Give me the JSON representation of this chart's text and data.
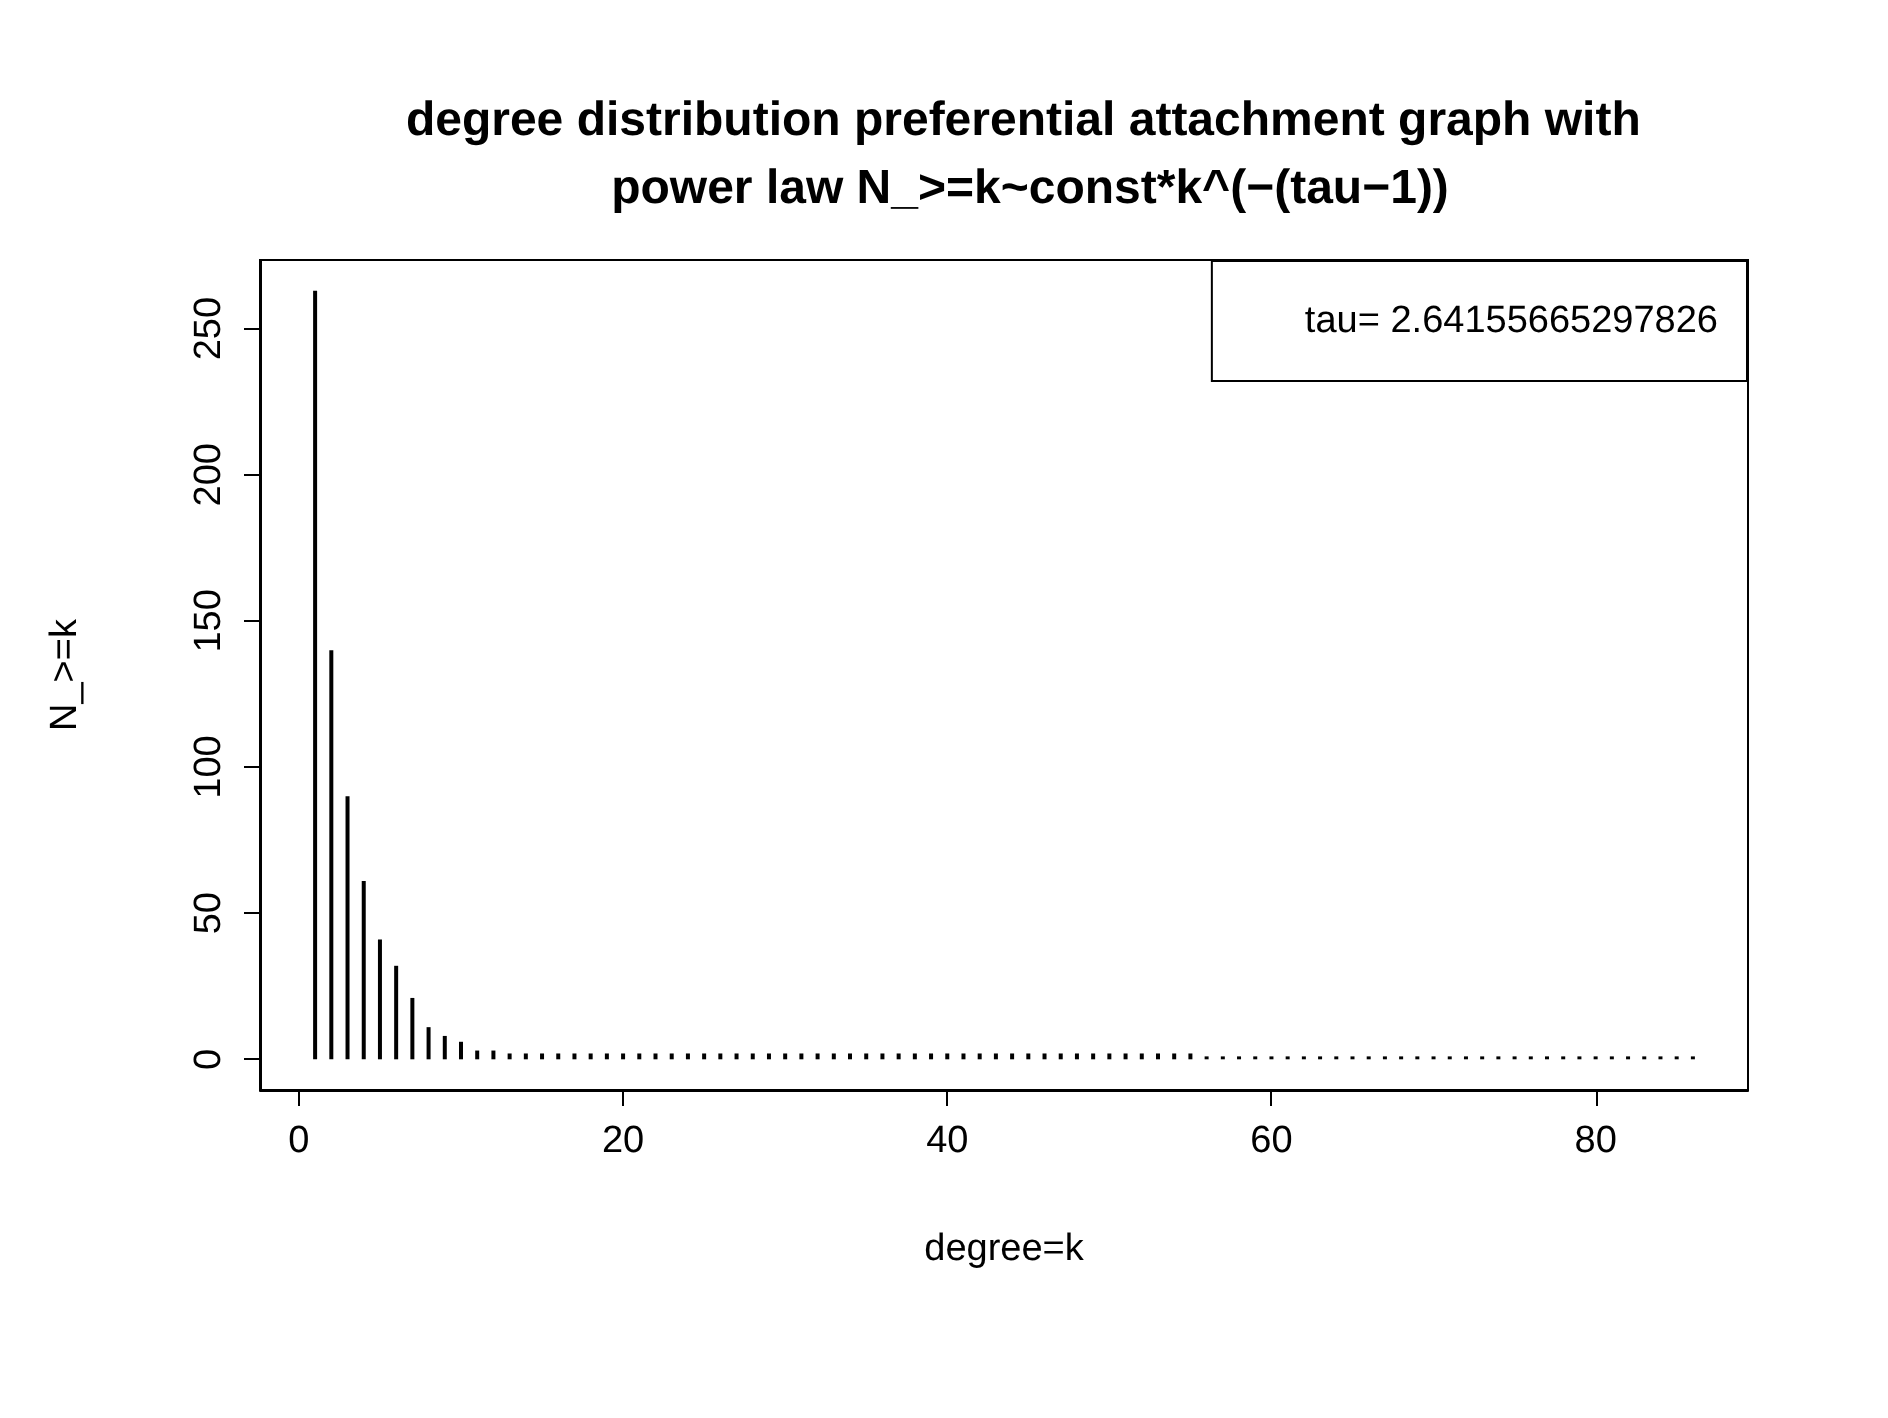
{
  "chart_data": {
    "type": "bar",
    "title": "degree distribution preferential attachment graph with power law N_>=k~const*k^(−(tau−1))",
    "xlabel": "degree=k",
    "ylabel": "N_>=k",
    "x": [
      1,
      2,
      3,
      4,
      5,
      6,
      7,
      8,
      9,
      10,
      11,
      12,
      13,
      14,
      15,
      16,
      17,
      18,
      19,
      20,
      21,
      22,
      23,
      24,
      25,
      26,
      27,
      28,
      29,
      30,
      31,
      32,
      33,
      34,
      35,
      36,
      37,
      38,
      39,
      40,
      41,
      42,
      43,
      44,
      45,
      46,
      47,
      48,
      49,
      50,
      51,
      52,
      53,
      54,
      55,
      56,
      57,
      58,
      59,
      60,
      61,
      62,
      63,
      64,
      65,
      66,
      67,
      68,
      69,
      70,
      71,
      72,
      73,
      74,
      75,
      76,
      77,
      78,
      79,
      80,
      81,
      82,
      83,
      84,
      85,
      86
    ],
    "values": [
      263,
      140,
      90,
      61,
      41,
      32,
      21,
      11,
      8,
      6,
      3,
      3,
      2,
      2,
      2,
      2,
      2,
      2,
      2,
      2,
      2,
      2,
      2,
      2,
      2,
      2,
      2,
      2,
      2,
      2,
      2,
      2,
      2,
      2,
      2,
      2,
      2,
      2,
      2,
      2,
      2,
      2,
      2,
      2,
      2,
      2,
      2,
      2,
      2,
      2,
      2,
      2,
      2,
      2,
      2,
      1,
      1,
      1,
      1,
      1,
      1,
      1,
      1,
      1,
      1,
      1,
      1,
      1,
      1,
      1,
      1,
      1,
      1,
      1,
      1,
      1,
      1,
      1,
      1,
      1,
      1,
      1,
      1,
      1,
      1,
      1
    ],
    "color": "#000000",
    "xlim": [
      -2.4,
      89.4
    ],
    "xticks": [
      0,
      20,
      40,
      60,
      80
    ],
    "ylim": [
      -10.5,
      273.5
    ],
    "yticks": [
      0,
      50,
      100,
      150,
      200,
      250
    ],
    "grid": false,
    "annotations": [
      "tau= 2.64155665297826"
    ]
  }
}
